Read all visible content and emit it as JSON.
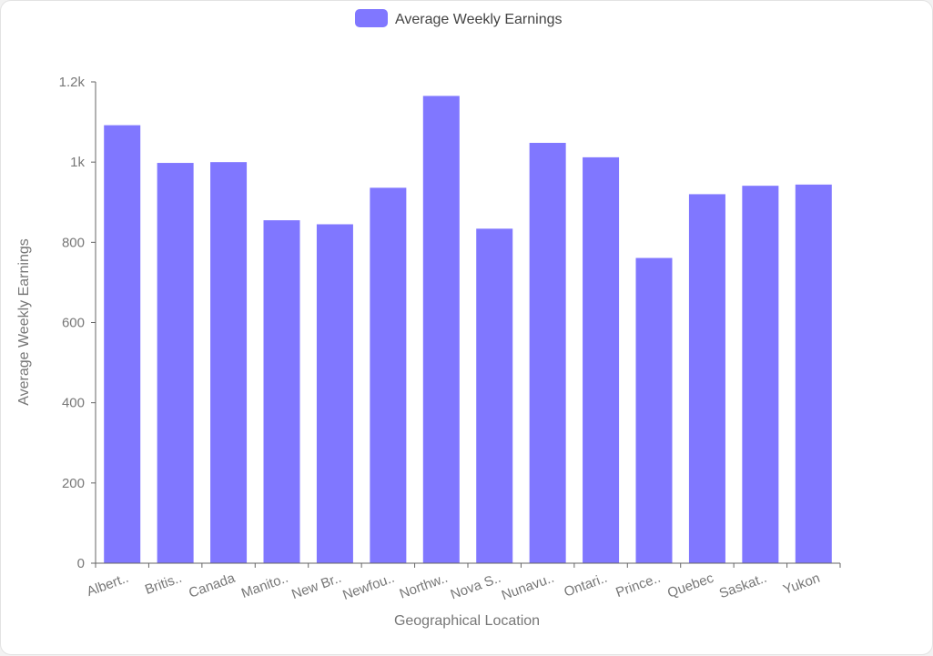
{
  "chart_data": {
    "type": "bar",
    "categories": [
      "Albert..",
      "Britis..",
      "Canada",
      "Manito..",
      "New Br..",
      "Newfou..",
      "Northw..",
      "Nova S..",
      "Nunavu..",
      "Ontari..",
      "Prince..",
      "Quebec",
      "Saskat..",
      "Yukon"
    ],
    "series": [
      {
        "name": "Average Weekly Earnings",
        "values": [
          1092,
          998,
          1000,
          855,
          845,
          936,
          1165,
          834,
          1048,
          1012,
          761,
          920,
          941,
          944
        ]
      }
    ],
    "xlabel": "Geographical Location",
    "ylabel": "Average Weekly Earnings",
    "ylim": [
      0,
      1200
    ],
    "yticks": [
      0,
      200,
      400,
      600,
      800,
      1000,
      1200
    ],
    "ytick_labels": [
      "0",
      "200",
      "400",
      "600",
      "800",
      "1k",
      "1.2k"
    ],
    "grid": false,
    "legend_position": "top-center",
    "colors": {
      "bar": "#8077ff",
      "axis": "#666666",
      "text": "#777777"
    }
  }
}
